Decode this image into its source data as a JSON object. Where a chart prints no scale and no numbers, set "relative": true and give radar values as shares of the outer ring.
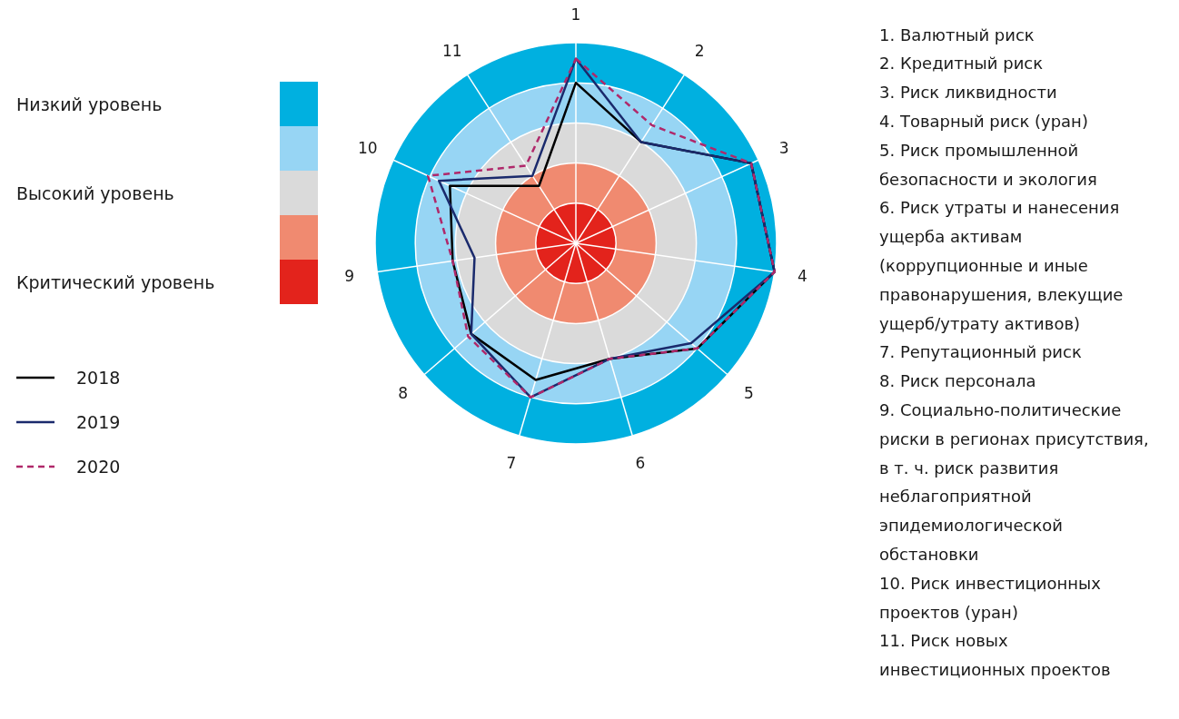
{
  "chart_data": {
    "type": "radar",
    "relative": true,
    "categories": [
      "1",
      "2",
      "3",
      "4",
      "5",
      "6",
      "7",
      "8",
      "9",
      "10",
      "11"
    ],
    "series": [
      {
        "name": "2018",
        "color": "#000000",
        "line_style": "solid",
        "values": [
          0.8,
          0.6,
          0.96,
          1.0,
          0.8,
          0.6,
          0.71,
          0.69,
          0.62,
          0.69,
          0.34
        ]
      },
      {
        "name": "2019",
        "color": "#1a2a6c",
        "line_style": "solid",
        "values": [
          0.92,
          0.6,
          0.96,
          1.0,
          0.76,
          0.6,
          0.8,
          0.69,
          0.51,
          0.75,
          0.4
        ]
      },
      {
        "name": "2020",
        "color": "#b0286a",
        "line_style": "dashed",
        "values": [
          0.92,
          0.7,
          0.96,
          1.0,
          0.8,
          0.6,
          0.8,
          0.71,
          0.62,
          0.81,
          0.46
        ]
      }
    ],
    "legend": "left",
    "annotations": [
      "Низкий уровень",
      "Высокий уровень",
      "Критический уровень",
      "1. Валютный риск",
      "2. Кредитный риск",
      "3. Риск ликвидности",
      "4. Товарный риск (уран)",
      "5. Риск промышленной безопасности и экология",
      "6. Риск утраты и нанесения ущерба активам (коррупционные и иные правонарушения, влекущие ущерб/утрату активов)",
      "7. Репутационный риск",
      "8. Риск персонала",
      "9. Социально-политические риски в регионах присутствия, в т. ч. риск развития неблагоприятной эпидемиологической обстановки",
      "10. Риск инвестиционных проектов (уран)",
      "11. Риск новых инвестиционных проектов"
    ]
  }
}
